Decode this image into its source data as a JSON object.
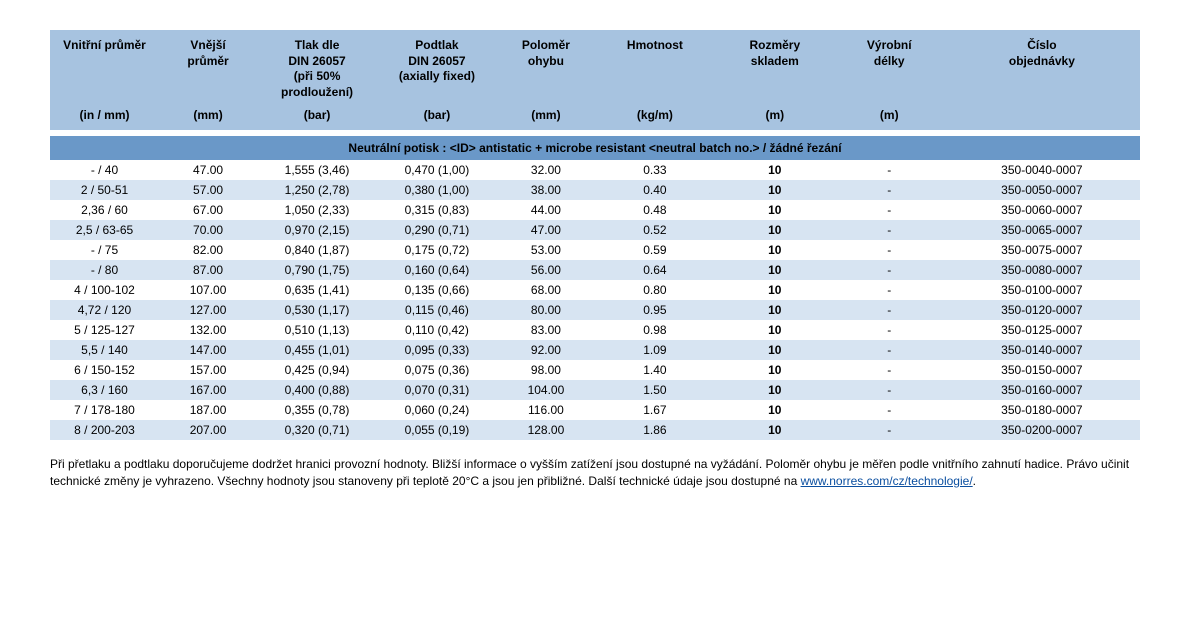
{
  "columns": [
    {
      "label": "Vnitřní průměr",
      "unit": "(in / mm)",
      "width": "10%"
    },
    {
      "label": "Vnější\nprůměr",
      "unit": "(mm)",
      "width": "9%"
    },
    {
      "label": "Tlak dle\nDIN 26057\n(při 50%\nprodloužení)",
      "unit": "(bar)",
      "width": "11%"
    },
    {
      "label": "Podtlak\nDIN 26057\n(axially fixed)",
      "unit": "(bar)",
      "width": "11%"
    },
    {
      "label": "Poloměr\nohybu",
      "unit": "(mm)",
      "width": "9%"
    },
    {
      "label": "Hmotnost",
      "unit": "(kg/m)",
      "width": "11%"
    },
    {
      "label": "Rozměry\nskladem",
      "unit": "(m)",
      "width": "11%"
    },
    {
      "label": "Výrobní\ndélky",
      "unit": "(m)",
      "width": "10%"
    },
    {
      "label": "Číslo\nobjednávky",
      "unit": "",
      "width": "18%"
    }
  ],
  "banner": "Neutrální potisk : <ID> antistatic + microbe resistant <neutral batch no.> / žádné řezání",
  "rows": [
    [
      "- / 40",
      "47.00",
      "1,555 (3,46)",
      "0,470 (1,00)",
      "32.00",
      "0.33",
      "10",
      "-",
      "350-0040-0007"
    ],
    [
      "2 / 50-51",
      "57.00",
      "1,250 (2,78)",
      "0,380 (1,00)",
      "38.00",
      "0.40",
      "10",
      "-",
      "350-0050-0007"
    ],
    [
      "2,36 / 60",
      "67.00",
      "1,050 (2,33)",
      "0,315 (0,83)",
      "44.00",
      "0.48",
      "10",
      "-",
      "350-0060-0007"
    ],
    [
      "2,5 / 63-65",
      "70.00",
      "0,970 (2,15)",
      "0,290 (0,71)",
      "47.00",
      "0.52",
      "10",
      "-",
      "350-0065-0007"
    ],
    [
      "- / 75",
      "82.00",
      "0,840 (1,87)",
      "0,175 (0,72)",
      "53.00",
      "0.59",
      "10",
      "-",
      "350-0075-0007"
    ],
    [
      "- / 80",
      "87.00",
      "0,790 (1,75)",
      "0,160 (0,64)",
      "56.00",
      "0.64",
      "10",
      "-",
      "350-0080-0007"
    ],
    [
      "4 / 100-102",
      "107.00",
      "0,635 (1,41)",
      "0,135 (0,66)",
      "68.00",
      "0.80",
      "10",
      "-",
      "350-0100-0007"
    ],
    [
      "4,72 / 120",
      "127.00",
      "0,530 (1,17)",
      "0,115 (0,46)",
      "80.00",
      "0.95",
      "10",
      "-",
      "350-0120-0007"
    ],
    [
      "5 / 125-127",
      "132.00",
      "0,510 (1,13)",
      "0,110 (0,42)",
      "83.00",
      "0.98",
      "10",
      "-",
      "350-0125-0007"
    ],
    [
      "5,5 / 140",
      "147.00",
      "0,455 (1,01)",
      "0,095 (0,33)",
      "92.00",
      "1.09",
      "10",
      "-",
      "350-0140-0007"
    ],
    [
      "6 / 150-152",
      "157.00",
      "0,425 (0,94)",
      "0,075 (0,36)",
      "98.00",
      "1.40",
      "10",
      "-",
      "350-0150-0007"
    ],
    [
      "6,3 / 160",
      "167.00",
      "0,400 (0,88)",
      "0,070 (0,31)",
      "104.00",
      "1.50",
      "10",
      "-",
      "350-0160-0007"
    ],
    [
      "7 / 178-180",
      "187.00",
      "0,355 (0,78)",
      "0,060 (0,24)",
      "116.00",
      "1.67",
      "10",
      "-",
      "350-0180-0007"
    ],
    [
      "8 / 200-203",
      "207.00",
      "0,320 (0,71)",
      "0,055 (0,19)",
      "128.00",
      "1.86",
      "10",
      "-",
      "350-0200-0007"
    ]
  ],
  "bold_column_index": 6,
  "footnote_text": "Při přetlaku a podtlaku doporučujeme dodržet hranici provozní hodnoty. Bližší informace o vyšším zatížení jsou dostupné na vyžádání. Poloměr ohybu je měřen podle vnitřního zahnutí hadice. Právo učinit technické změny je vyhrazeno. Všechny hodnoty jsou stanoveny při teplotě 20°C a jsou jen přibližné. Další technické údaje jsou dostupné na ",
  "footnote_link_text": "www.norres.com/cz/technologie/",
  "footnote_suffix": ".",
  "colors": {
    "header_bg": "#a7c3e0",
    "banner_bg": "#6a98c8",
    "row_even_bg": "#ffffff",
    "row_odd_bg": "#d7e4f2",
    "link_color": "#0b4fa0"
  }
}
